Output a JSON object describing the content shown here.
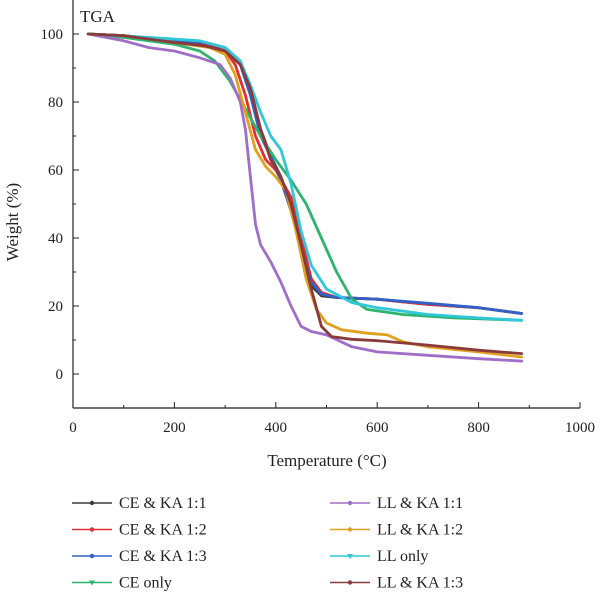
{
  "chart_data": {
    "type": "line",
    "title": "TGA",
    "xlabel": "Temperature (°C)",
    "ylabel": "Weight (%)",
    "xlim": [
      0,
      1000
    ],
    "ylim": [
      -10,
      110
    ],
    "xticks": [
      0,
      200,
      400,
      600,
      800,
      1000
    ],
    "yticks": [
      0,
      20,
      40,
      60,
      80,
      100
    ],
    "grid": false,
    "legend_position": "bottom",
    "series": [
      {
        "name": "CE & KA 1:1",
        "color": "#3a3a3a",
        "points": [
          [
            30,
            100
          ],
          [
            100,
            99.5
          ],
          [
            200,
            98
          ],
          [
            260,
            97.5
          ],
          [
            300,
            96
          ],
          [
            330,
            92
          ],
          [
            350,
            84
          ],
          [
            370,
            72
          ],
          [
            390,
            64
          ],
          [
            410,
            58
          ],
          [
            430,
            50
          ],
          [
            450,
            38
          ],
          [
            470,
            26
          ],
          [
            490,
            23
          ],
          [
            520,
            22.5
          ],
          [
            600,
            22
          ],
          [
            700,
            20.5
          ],
          [
            800,
            19.5
          ],
          [
            885,
            17.8
          ]
        ]
      },
      {
        "name": "CE & KA 1:2",
        "color": "#e03030",
        "points": [
          [
            30,
            100
          ],
          [
            100,
            99
          ],
          [
            200,
            97.5
          ],
          [
            260,
            97
          ],
          [
            300,
            95
          ],
          [
            320,
            91
          ],
          [
            340,
            82
          ],
          [
            360,
            70
          ],
          [
            380,
            63
          ],
          [
            400,
            60
          ],
          [
            430,
            52
          ],
          [
            450,
            40
          ],
          [
            470,
            28
          ],
          [
            490,
            24
          ],
          [
            520,
            22.5
          ],
          [
            600,
            22
          ],
          [
            700,
            20.5
          ],
          [
            800,
            19.5
          ],
          [
            885,
            17.8
          ]
        ]
      },
      {
        "name": "CE & KA 1:3",
        "color": "#3060c8",
        "points": [
          [
            30,
            100
          ],
          [
            100,
            99.5
          ],
          [
            200,
            98
          ],
          [
            260,
            97.5
          ],
          [
            300,
            96
          ],
          [
            330,
            91
          ],
          [
            350,
            82
          ],
          [
            370,
            70
          ],
          [
            390,
            64
          ],
          [
            410,
            57
          ],
          [
            430,
            48
          ],
          [
            450,
            37
          ],
          [
            470,
            27
          ],
          [
            490,
            23.5
          ],
          [
            520,
            22.5
          ],
          [
            600,
            22
          ],
          [
            700,
            20.8
          ],
          [
            800,
            19.5
          ],
          [
            885,
            17.8
          ]
        ]
      },
      {
        "name": "CE only",
        "color": "#2db46e",
        "points": [
          [
            30,
            100
          ],
          [
            100,
            99
          ],
          [
            200,
            97
          ],
          [
            250,
            95
          ],
          [
            280,
            92
          ],
          [
            310,
            86
          ],
          [
            340,
            78
          ],
          [
            370,
            70
          ],
          [
            400,
            63
          ],
          [
            430,
            57
          ],
          [
            460,
            50
          ],
          [
            490,
            40
          ],
          [
            520,
            30
          ],
          [
            550,
            22
          ],
          [
            580,
            19
          ],
          [
            650,
            17.5
          ],
          [
            750,
            16.5
          ],
          [
            885,
            15.8
          ]
        ]
      },
      {
        "name": "LL & KA 1:1",
        "color": "#a06ec8",
        "points": [
          [
            30,
            100
          ],
          [
            100,
            98
          ],
          [
            150,
            96
          ],
          [
            200,
            95
          ],
          [
            250,
            93
          ],
          [
            290,
            91
          ],
          [
            310,
            87
          ],
          [
            330,
            80
          ],
          [
            340,
            72
          ],
          [
            350,
            58
          ],
          [
            360,
            44
          ],
          [
            370,
            38
          ],
          [
            390,
            33
          ],
          [
            410,
            27
          ],
          [
            430,
            20
          ],
          [
            450,
            14
          ],
          [
            470,
            12.5
          ],
          [
            500,
            11.5
          ],
          [
            550,
            8
          ],
          [
            600,
            6.5
          ],
          [
            700,
            5.5
          ],
          [
            800,
            4.5
          ],
          [
            885,
            3.8
          ]
        ]
      },
      {
        "name": "LL & KA 1:2",
        "color": "#e0a020",
        "points": [
          [
            30,
            100
          ],
          [
            100,
            99.5
          ],
          [
            200,
            97.5
          ],
          [
            270,
            96
          ],
          [
            300,
            94
          ],
          [
            320,
            88
          ],
          [
            340,
            77
          ],
          [
            360,
            66
          ],
          [
            380,
            61
          ],
          [
            400,
            58
          ],
          [
            420,
            54
          ],
          [
            440,
            42
          ],
          [
            460,
            28
          ],
          [
            480,
            19
          ],
          [
            500,
            15
          ],
          [
            530,
            13
          ],
          [
            580,
            12
          ],
          [
            620,
            11.5
          ],
          [
            650,
            9.5
          ],
          [
            700,
            8
          ],
          [
            800,
            6.5
          ],
          [
            885,
            5
          ]
        ]
      },
      {
        "name": "LL only",
        "color": "#30c8d8",
        "points": [
          [
            30,
            100
          ],
          [
            150,
            99
          ],
          [
            250,
            98
          ],
          [
            300,
            96
          ],
          [
            330,
            92
          ],
          [
            350,
            85
          ],
          [
            370,
            77
          ],
          [
            390,
            70
          ],
          [
            410,
            66
          ],
          [
            430,
            56
          ],
          [
            450,
            42
          ],
          [
            470,
            32
          ],
          [
            500,
            25
          ],
          [
            550,
            21
          ],
          [
            600,
            19.5
          ],
          [
            700,
            17.5
          ],
          [
            800,
            16.5
          ],
          [
            885,
            15.8
          ]
        ]
      },
      {
        "name": "LL & KA 1:3",
        "color": "#8a3a3a",
        "points": [
          [
            30,
            100
          ],
          [
            100,
            99.5
          ],
          [
            200,
            97.5
          ],
          [
            260,
            96.5
          ],
          [
            300,
            95
          ],
          [
            330,
            91
          ],
          [
            350,
            84
          ],
          [
            370,
            72
          ],
          [
            390,
            63
          ],
          [
            410,
            58
          ],
          [
            430,
            50
          ],
          [
            450,
            38
          ],
          [
            470,
            25
          ],
          [
            490,
            14
          ],
          [
            510,
            11
          ],
          [
            550,
            10.2
          ],
          [
            600,
            9.8
          ],
          [
            700,
            8.5
          ],
          [
            800,
            7
          ],
          [
            885,
            6
          ]
        ]
      }
    ]
  }
}
